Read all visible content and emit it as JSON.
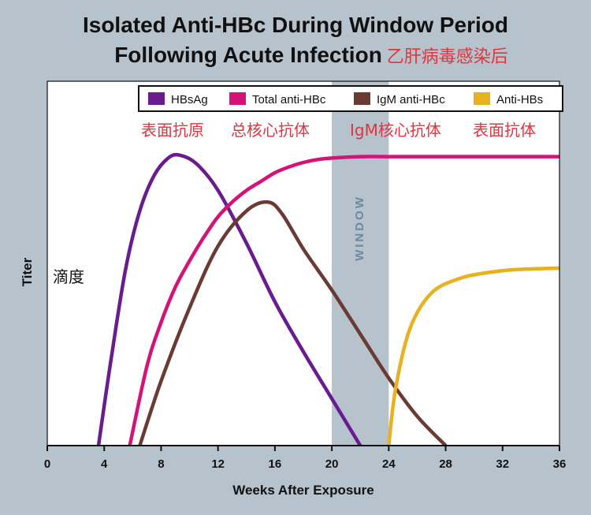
{
  "title_line1": "Isolated Anti-HBc During Window Period",
  "title_line2": "Following Acute Infection",
  "title_cn": "乙肝病毒感染后",
  "ylabel_cn": "滴度",
  "window_label": "WINDOW",
  "series_labels_cn": [
    "表面抗原",
    "总核心抗体",
    "IgM核心抗体",
    "表面抗体"
  ],
  "colors": {
    "hbsag": "#6a1b8f",
    "total_anti_hbc": "#d4127a",
    "igm_anti_hbc": "#6b3a32",
    "anti_hbs": "#e9b020",
    "window_band": "#b6c2cc",
    "cn_text": "#e0353f"
  },
  "chart_data": {
    "type": "line",
    "title": "Isolated Anti-HBc During Window Period Following Acute Infection",
    "xlabel": "Weeks After Exposure",
    "ylabel": "Titer",
    "xlim": [
      0,
      36
    ],
    "ylim": [
      0,
      100
    ],
    "xticks": [
      0,
      4,
      8,
      12,
      16,
      20,
      24,
      28,
      32,
      36
    ],
    "window": [
      20,
      24
    ],
    "legend": [
      "HBsAg",
      "Total anti-HBc",
      "IgM anti-HBc",
      "Anti-HBs"
    ],
    "legend_placement": "top",
    "grid": false,
    "series": [
      {
        "name": "HBsAg",
        "x": [
          3.6,
          4.5,
          5.5,
          6.5,
          7.5,
          8.5,
          9.3,
          10.5,
          12,
          14,
          16,
          18,
          20,
          22
        ],
        "y": [
          0,
          30,
          60,
          80,
          92,
          98,
          99,
          96,
          87,
          69,
          49,
          32,
          16,
          0
        ]
      },
      {
        "name": "Total anti-HBc",
        "x": [
          5.8,
          7,
          8,
          9,
          10,
          11,
          12,
          13,
          14,
          15,
          16,
          17,
          18,
          19,
          20,
          22,
          24,
          28,
          32,
          36
        ],
        "y": [
          0,
          27,
          42,
          54,
          63,
          71,
          78,
          83,
          87,
          90,
          93,
          95,
          96.5,
          97.5,
          98,
          98.5,
          98.5,
          98.5,
          98.5,
          98.5
        ]
      },
      {
        "name": "IgM anti-HBc",
        "x": [
          6.5,
          8,
          10,
          12,
          14,
          15.5,
          16.5,
          18,
          20,
          22,
          24,
          26,
          28
        ],
        "y": [
          0,
          22,
          47,
          68,
          80,
          83,
          79,
          67,
          53,
          38,
          23,
          10,
          0
        ]
      },
      {
        "name": "Anti-HBs",
        "x": [
          24,
          24.5,
          25.5,
          27,
          29,
          31,
          33,
          36
        ],
        "y": [
          0,
          20,
          40,
          52,
          57,
          59,
          60,
          60.5
        ]
      }
    ]
  }
}
